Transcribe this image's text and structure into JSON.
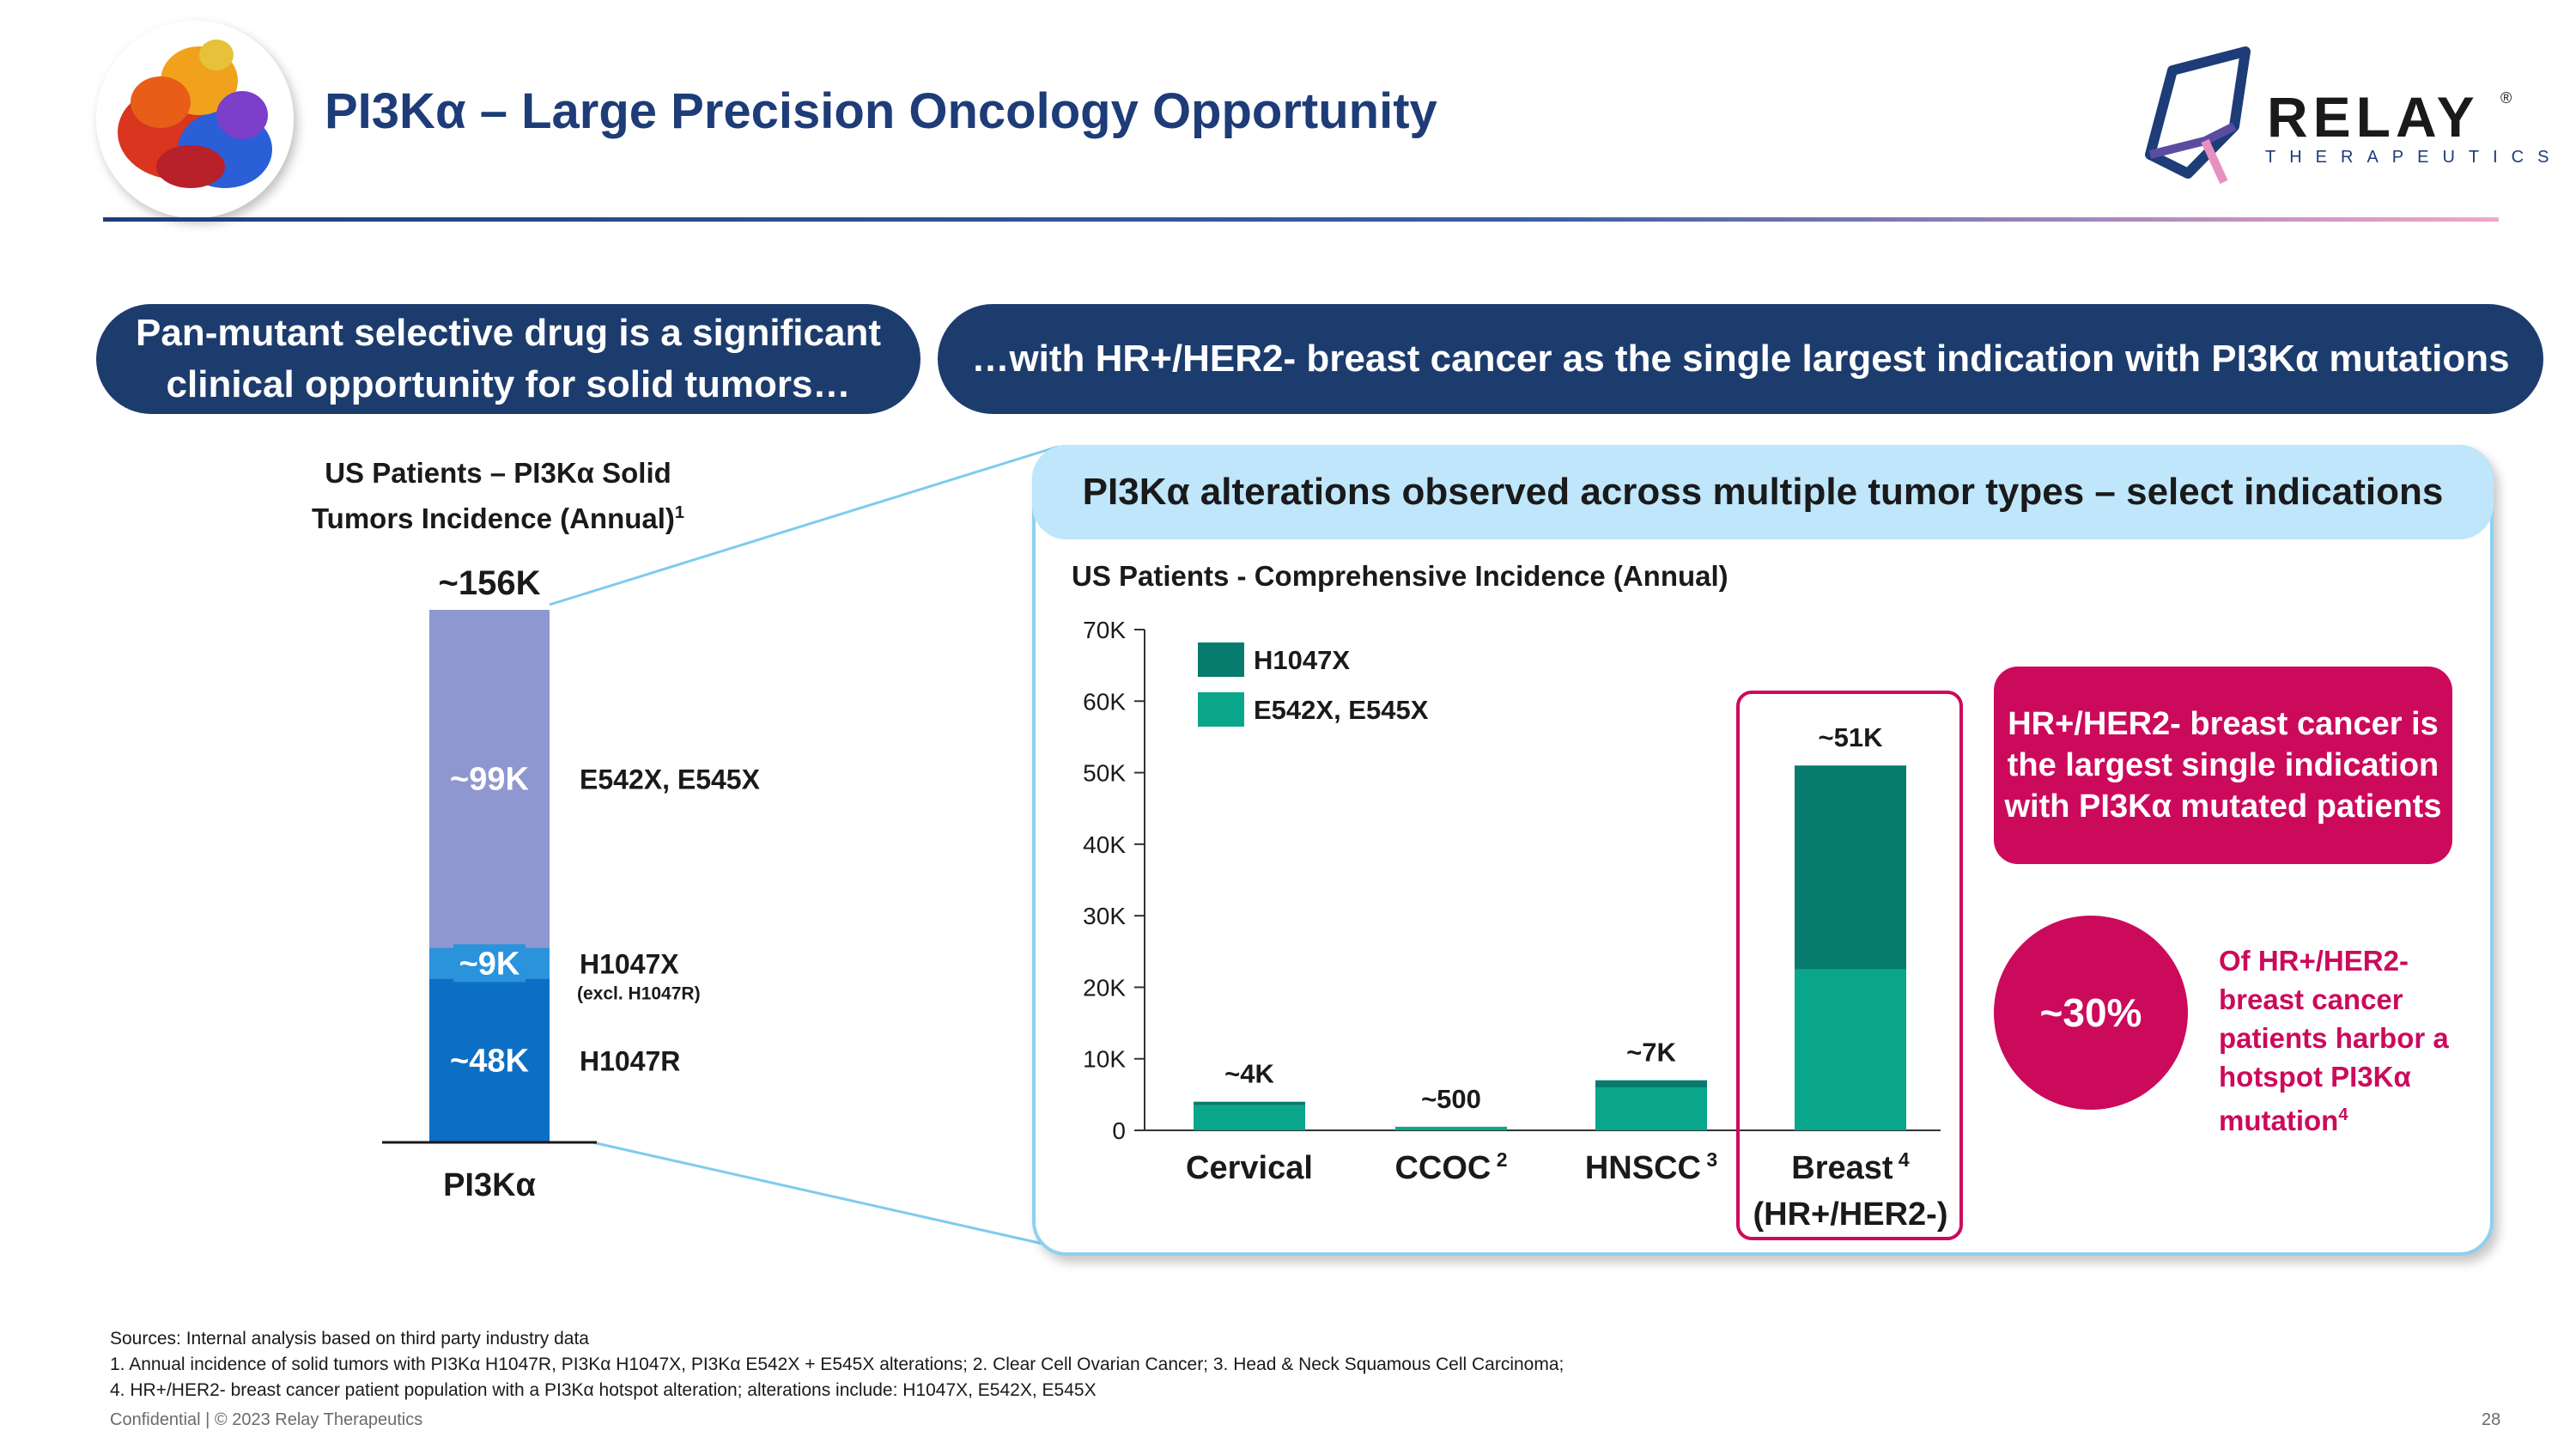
{
  "header": {
    "title": "PI3Kα – Large Precision Oncology Opportunity",
    "logo": {
      "name": "RELAY",
      "registered": "®",
      "subtitle": "THERAPEUTICS"
    }
  },
  "banners": {
    "left": "Pan-mutant selective drug is a significant clinical opportunity for solid tumors…",
    "right": "…with HR+/HER2- breast cancer as the single largest indication with PI3Kα mutations"
  },
  "panel": {
    "header": "PI3Kα alterations observed across multiple tumor types – select indications",
    "callout": "HR+/HER2- breast cancer is the largest single indication with PI3Kα mutated patients",
    "circle": "~30%",
    "circle_note": "Of HR+/HER2- breast cancer patients harbor a hotspot PI3Kα mutation",
    "circle_note_sup": "4"
  },
  "chart_data": [
    {
      "type": "bar",
      "stacked": true,
      "title": "US Patients – PI3Kα Solid Tumors Incidence (Annual)",
      "title_sup": "1",
      "categories": [
        "PI3Kα"
      ],
      "total_label": "~156K",
      "series": [
        {
          "name": "H1047R",
          "values": [
            48
          ],
          "label": "~48K",
          "color": "#0d6fc4"
        },
        {
          "name": "H1047X",
          "note": "(excl. H1047R)",
          "values": [
            9
          ],
          "label": "~9K",
          "color": "#2a93dc"
        },
        {
          "name": "E542X, E545X",
          "values": [
            99
          ],
          "label": "~99K",
          "color": "#8f97d0"
        }
      ],
      "unit": "K"
    },
    {
      "type": "bar",
      "stacked": true,
      "title": "US Patients - Comprehensive Incidence (Annual)",
      "ylim": [
        0,
        70
      ],
      "yticks": [
        "0",
        "10K",
        "20K",
        "30K",
        "40K",
        "50K",
        "60K",
        "70K"
      ],
      "categories": [
        {
          "label": "Cervical",
          "sup": ""
        },
        {
          "label": "CCOC",
          "sup": "2"
        },
        {
          "label": "HNSCC",
          "sup": "3"
        },
        {
          "label": "Breast",
          "sup": "4",
          "label2": "(HR+/HER2-)"
        }
      ],
      "series": [
        {
          "name": "E542X, E545X",
          "values": [
            3.5,
            0.5,
            6,
            22.5
          ],
          "color": "#0aa68c"
        },
        {
          "name": "H1047X",
          "values": [
            0.5,
            0,
            1,
            28.5
          ],
          "color": "#067b6e"
        }
      ],
      "data_labels": [
        "~4K",
        "~500",
        "~7K",
        "~51K"
      ],
      "legend": "top-left"
    }
  ],
  "footer": {
    "sources": "Sources: Internal analysis based on third party industry data",
    "note1": "1. Annual incidence of solid tumors with PI3Kα H1047R, PI3Kα H1047X, PI3Kα E542X + E545X alterations; 2. Clear Cell Ovarian Cancer; 3. Head & Neck Squamous Cell Carcinoma;",
    "note2": "4. HR+/HER2- breast cancer patient population with a PI3Kα hotspot alteration; alterations include: H1047X, E542X, E545X",
    "confidential": "Confidential | © 2023 Relay Therapeutics",
    "page": "28"
  },
  "colors": {
    "navy": "#1d3c6e",
    "magenta": "#cc0a5c",
    "light_blue": "#bfe6fb"
  }
}
